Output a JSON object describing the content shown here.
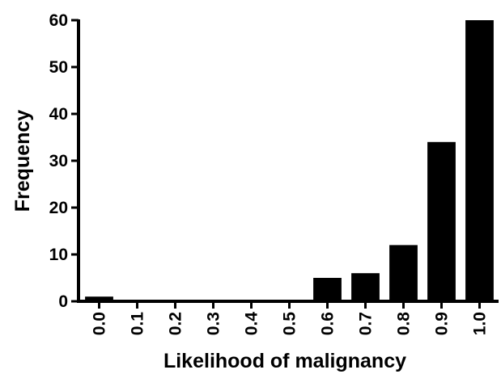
{
  "chart_data": {
    "type": "bar",
    "xlabel": "Likelihood of malignancy",
    "ylabel": "Frequency",
    "categories": [
      "0.0",
      "0.1",
      "0.2",
      "0.3",
      "0.4",
      "0.5",
      "0.6",
      "0.7",
      "0.8",
      "0.9",
      "1.0"
    ],
    "values": [
      1,
      0,
      0,
      0,
      0,
      0,
      5,
      6,
      12,
      34,
      60
    ],
    "ylim": [
      0,
      60
    ],
    "yticks": [
      "0",
      "10",
      "20",
      "30",
      "40",
      "50",
      "60"
    ],
    "grid": false,
    "legend": "none",
    "bar_color": "#000000"
  }
}
